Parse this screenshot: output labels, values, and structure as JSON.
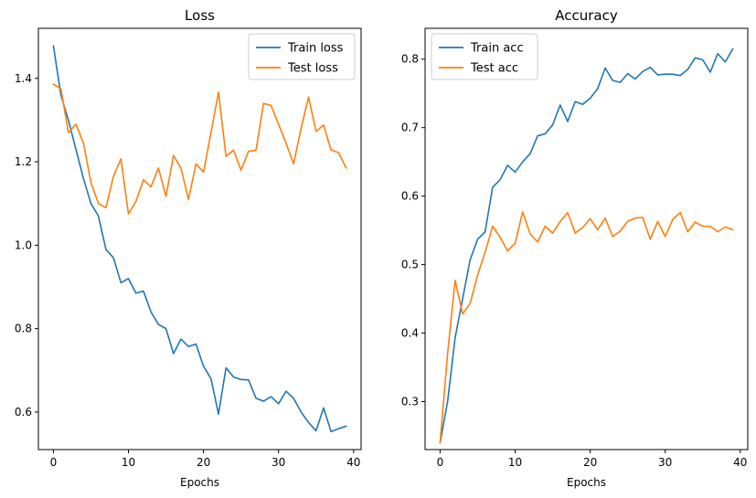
{
  "chart_data": [
    {
      "type": "line",
      "title": "Loss",
      "xlabel": "Epochs",
      "ylabel": "",
      "xlim": [
        -2,
        41
      ],
      "ylim": [
        0.51,
        1.52
      ],
      "xticks": [
        0,
        10,
        20,
        30,
        40
      ],
      "yticks": [
        0.6,
        0.8,
        1.0,
        1.2,
        1.4
      ],
      "ytick_labels": [
        "0.6",
        "0.8",
        "1.0",
        "1.2",
        "1.4"
      ],
      "legend_position": "top-right",
      "x": [
        0,
        1,
        2,
        3,
        4,
        5,
        6,
        7,
        8,
        9,
        10,
        11,
        12,
        13,
        14,
        15,
        16,
        17,
        18,
        19,
        20,
        21,
        22,
        23,
        24,
        25,
        26,
        27,
        28,
        29,
        30,
        31,
        32,
        33,
        34,
        35,
        36,
        37,
        38,
        39
      ],
      "series": [
        {
          "name": "Train loss",
          "color": "#1f77b4",
          "values": [
            1.478,
            1.36,
            1.3,
            1.23,
            1.16,
            1.1,
            1.07,
            0.99,
            0.97,
            0.91,
            0.92,
            0.885,
            0.89,
            0.84,
            0.81,
            0.8,
            0.74,
            0.775,
            0.757,
            0.763,
            0.71,
            0.68,
            0.595,
            0.706,
            0.684,
            0.678,
            0.677,
            0.633,
            0.626,
            0.637,
            0.62,
            0.65,
            0.633,
            0.6,
            0.575,
            0.555,
            0.61,
            0.553,
            0.56,
            0.566
          ]
        },
        {
          "name": "Test loss",
          "color": "#ff7f0e",
          "values": [
            1.386,
            1.375,
            1.27,
            1.29,
            1.245,
            1.15,
            1.1,
            1.09,
            1.165,
            1.207,
            1.075,
            1.105,
            1.157,
            1.14,
            1.185,
            1.117,
            1.215,
            1.185,
            1.11,
            1.195,
            1.175,
            1.27,
            1.367,
            1.213,
            1.228,
            1.18,
            1.225,
            1.228,
            1.34,
            1.335,
            1.29,
            1.245,
            1.195,
            1.28,
            1.355,
            1.273,
            1.288,
            1.228,
            1.222,
            1.185
          ]
        }
      ]
    },
    {
      "type": "line",
      "title": "Accuracy",
      "xlabel": "Epochs",
      "ylabel": "",
      "xlim": [
        -2,
        41
      ],
      "ylim": [
        0.23,
        0.845
      ],
      "xticks": [
        0,
        10,
        20,
        30,
        40
      ],
      "yticks": [
        0.3,
        0.4,
        0.5,
        0.6,
        0.7,
        0.8
      ],
      "ytick_labels": [
        "0.3",
        "0.4",
        "0.5",
        "0.6",
        "0.7",
        "0.8"
      ],
      "legend_position": "top-left",
      "x": [
        0,
        1,
        2,
        3,
        4,
        5,
        6,
        7,
        8,
        9,
        10,
        11,
        12,
        13,
        14,
        15,
        16,
        17,
        18,
        19,
        20,
        21,
        22,
        23,
        24,
        25,
        26,
        27,
        28,
        29,
        30,
        31,
        32,
        33,
        34,
        35,
        36,
        37,
        38,
        39
      ],
      "series": [
        {
          "name": "Train acc",
          "color": "#1f77b4",
          "values": [
            0.24,
            0.3,
            0.393,
            0.45,
            0.507,
            0.537,
            0.548,
            0.613,
            0.624,
            0.645,
            0.635,
            0.65,
            0.662,
            0.688,
            0.691,
            0.704,
            0.733,
            0.709,
            0.738,
            0.734,
            0.743,
            0.757,
            0.787,
            0.769,
            0.766,
            0.779,
            0.771,
            0.782,
            0.788,
            0.777,
            0.778,
            0.778,
            0.776,
            0.785,
            0.802,
            0.799,
            0.781,
            0.808,
            0.796,
            0.815
          ]
        },
        {
          "name": "Test acc",
          "color": "#ff7f0e",
          "values": [
            0.24,
            0.37,
            0.477,
            0.428,
            0.443,
            0.485,
            0.518,
            0.556,
            0.54,
            0.52,
            0.531,
            0.577,
            0.545,
            0.533,
            0.556,
            0.546,
            0.563,
            0.576,
            0.546,
            0.554,
            0.567,
            0.551,
            0.568,
            0.541,
            0.549,
            0.563,
            0.568,
            0.569,
            0.537,
            0.563,
            0.541,
            0.566,
            0.576,
            0.548,
            0.562,
            0.556,
            0.556,
            0.548,
            0.555,
            0.551
          ]
        }
      ]
    }
  ]
}
